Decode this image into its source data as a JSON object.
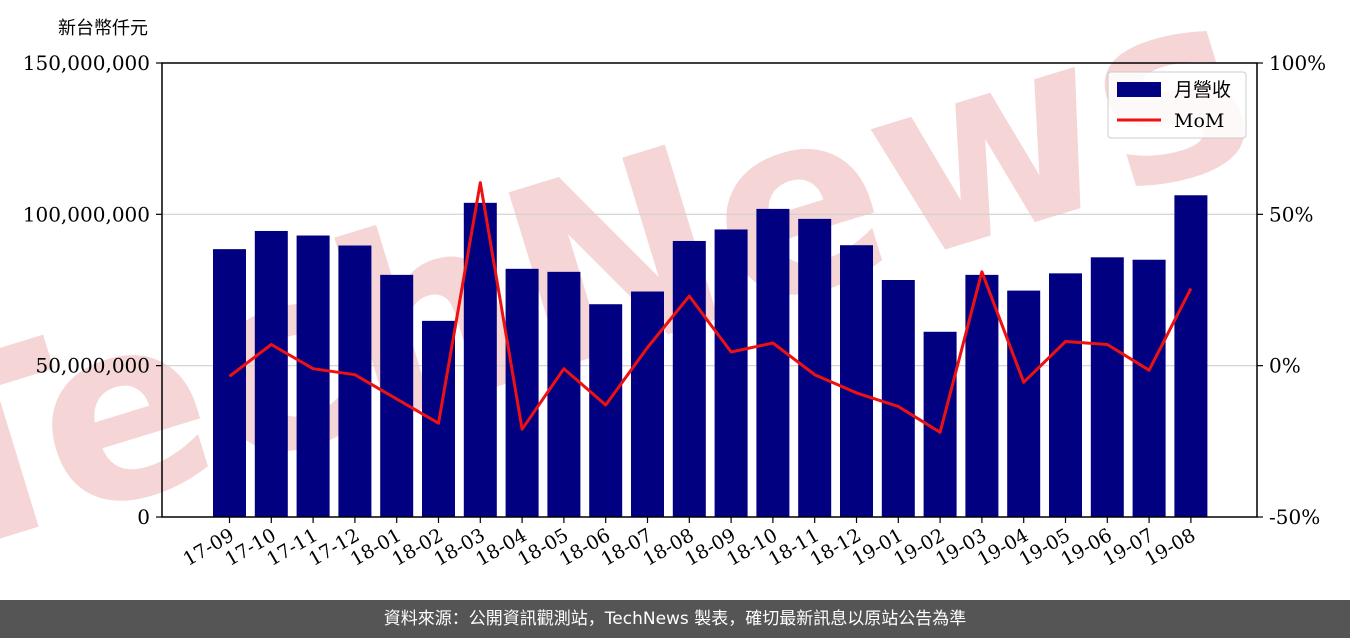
{
  "footer": {
    "source_text": "資料來源：公開資訊觀測站，TechNews 製表，確切最新訊息以原站公告為準"
  },
  "watermark": {
    "text": "TechNews",
    "color": "#f5d5d5"
  },
  "chart_data": {
    "type": "bar",
    "unit_label": "新台幣仟元",
    "categories": [
      "17-09",
      "17-10",
      "17-11",
      "17-12",
      "18-01",
      "18-02",
      "18-03",
      "18-04",
      "18-05",
      "18-06",
      "18-07",
      "18-08",
      "18-09",
      "18-10",
      "18-11",
      "18-12",
      "19-01",
      "19-02",
      "19-03",
      "19-04",
      "19-05",
      "19-06",
      "19-07",
      "19-08"
    ],
    "series": [
      {
        "name": "月營收",
        "type": "bar",
        "axis": "left",
        "color": "#000080",
        "values": [
          88500000,
          94500000,
          93000000,
          89700000,
          80000000,
          64800000,
          103800000,
          82000000,
          81000000,
          70300000,
          74500000,
          91200000,
          95000000,
          101800000,
          98500000,
          89800000,
          78300000,
          61200000,
          80000000,
          74800000,
          80500000,
          85800000,
          85000000,
          106300000
        ]
      },
      {
        "name": "MoM",
        "type": "line",
        "axis": "right",
        "color": "#ee1111",
        "values": [
          -3.5,
          7,
          -1,
          -3,
          -11,
          -19,
          60.5,
          -21,
          -1,
          -13,
          6,
          23,
          4.5,
          7.5,
          -3,
          -9,
          -13.5,
          -22,
          31,
          -5.5,
          8,
          7,
          -1.5,
          25.5
        ]
      }
    ],
    "y_left": {
      "ylim": [
        0,
        150000000
      ],
      "ticks": [
        0,
        50000000,
        100000000,
        150000000
      ],
      "tick_labels": [
        "0",
        "50,000,000",
        "100,000,000",
        "150,000,000"
      ]
    },
    "y_right": {
      "ylim": [
        -50,
        100
      ],
      "ticks": [
        -50,
        0,
        50,
        100
      ],
      "tick_labels": [
        "-50%",
        "0%",
        "50%",
        "100%"
      ]
    },
    "grid": true,
    "legend_position": "top-right"
  }
}
